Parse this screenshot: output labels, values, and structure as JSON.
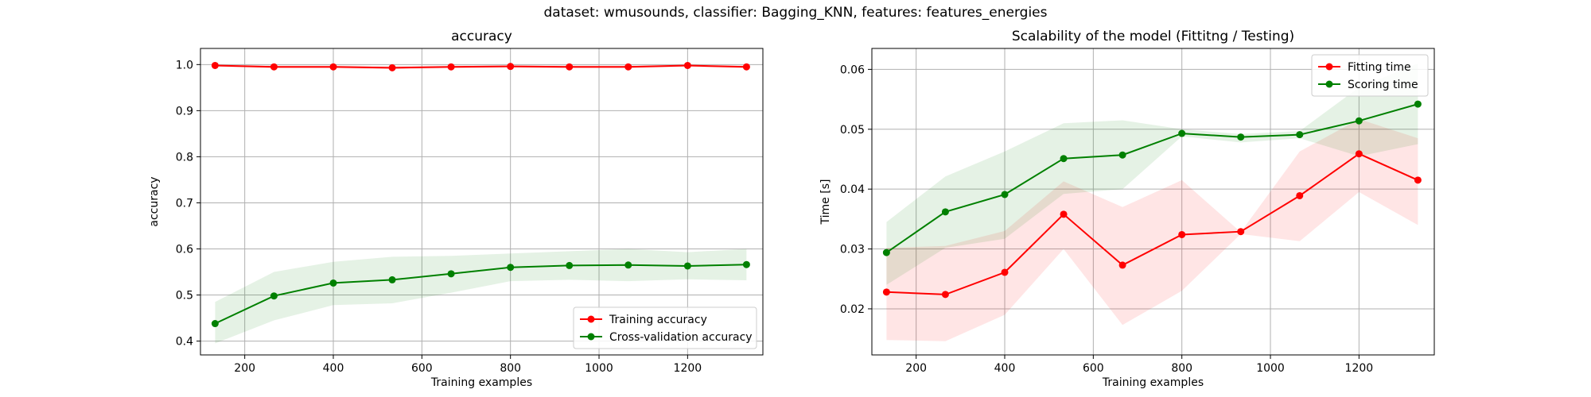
{
  "suptitle": "dataset: wmusounds, classifier: Bagging_KNN, features: features_energies",
  "colors": {
    "train": "#ff0000",
    "cv": "#008000",
    "grid": "#b0b0b0"
  },
  "chart_data": [
    {
      "type": "line",
      "title": "accuracy",
      "xlabel": "Training examples",
      "ylabel": "accuracy",
      "xlim": [
        100,
        1370
      ],
      "ylim": [
        0.37,
        1.035
      ],
      "xticks": [
        200,
        400,
        600,
        800,
        1000,
        1200
      ],
      "yticks": [
        0.4,
        0.5,
        0.6,
        0.7,
        0.8,
        0.9,
        1.0
      ],
      "ytick_labels": [
        "0.4",
        "0.5",
        "0.6",
        "0.7",
        "0.8",
        "0.9",
        "1.0"
      ],
      "grid": true,
      "legend_position": "lower-right",
      "x": [
        133,
        266,
        400,
        533,
        666,
        800,
        933,
        1066,
        1200,
        1333
      ],
      "series": [
        {
          "name": "Training accuracy",
          "color": "#ff0000",
          "values": [
            0.998,
            0.995,
            0.995,
            0.993,
            0.995,
            0.996,
            0.995,
            0.995,
            0.998,
            0.995
          ],
          "band_low": [
            0.995,
            0.992,
            0.992,
            0.99,
            0.992,
            0.993,
            0.992,
            0.992,
            0.995,
            0.992
          ],
          "band_high": [
            1.0,
            0.998,
            0.998,
            0.997,
            0.998,
            0.999,
            0.998,
            0.998,
            1.0,
            0.998
          ]
        },
        {
          "name": "Cross-validation accuracy",
          "color": "#008000",
          "values": [
            0.438,
            0.498,
            0.526,
            0.533,
            0.546,
            0.56,
            0.564,
            0.565,
            0.563,
            0.566
          ],
          "band_low": [
            0.395,
            0.445,
            0.478,
            0.482,
            0.505,
            0.53,
            0.533,
            0.53,
            0.534,
            0.532
          ],
          "band_high": [
            0.485,
            0.55,
            0.572,
            0.583,
            0.585,
            0.59,
            0.595,
            0.6,
            0.593,
            0.6
          ]
        }
      ]
    },
    {
      "type": "line",
      "title": "Scalability of the model (Fittitng / Testing)",
      "xlabel": "Training examples",
      "ylabel": "Time [s]",
      "xlim": [
        100,
        1370
      ],
      "ylim": [
        0.0123,
        0.0635
      ],
      "xticks": [
        200,
        400,
        600,
        800,
        1000,
        1200
      ],
      "yticks": [
        0.02,
        0.03,
        0.04,
        0.05,
        0.06
      ],
      "ytick_labels": [
        "0.02",
        "0.03",
        "0.04",
        "0.05",
        "0.06"
      ],
      "grid": true,
      "legend_position": "upper-right",
      "x": [
        133,
        266,
        400,
        533,
        666,
        800,
        933,
        1066,
        1200,
        1333
      ],
      "series": [
        {
          "name": "Fitting time",
          "color": "#ff0000",
          "values": [
            0.0228,
            0.0224,
            0.0261,
            0.0358,
            0.0273,
            0.0324,
            0.0329,
            0.0389,
            0.0459,
            0.0415
          ],
          "band_low": [
            0.0148,
            0.0146,
            0.019,
            0.03,
            0.0173,
            0.023,
            0.0325,
            0.0313,
            0.0395,
            0.034
          ],
          "band_high": [
            0.0302,
            0.0305,
            0.033,
            0.0413,
            0.037,
            0.0415,
            0.0328,
            0.0463,
            0.0517,
            0.0485
          ]
        },
        {
          "name": "Scoring time",
          "color": "#008000",
          "values": [
            0.0294,
            0.0362,
            0.0391,
            0.0451,
            0.0457,
            0.0493,
            0.0487,
            0.0491,
            0.0514,
            0.0542
          ],
          "band_low": [
            0.024,
            0.0302,
            0.0317,
            0.0392,
            0.04,
            0.0488,
            0.0478,
            0.0485,
            0.0455,
            0.0475
          ],
          "band_high": [
            0.0345,
            0.0421,
            0.0463,
            0.051,
            0.0515,
            0.05,
            0.0492,
            0.0497,
            0.057,
            0.061
          ]
        }
      ]
    }
  ]
}
